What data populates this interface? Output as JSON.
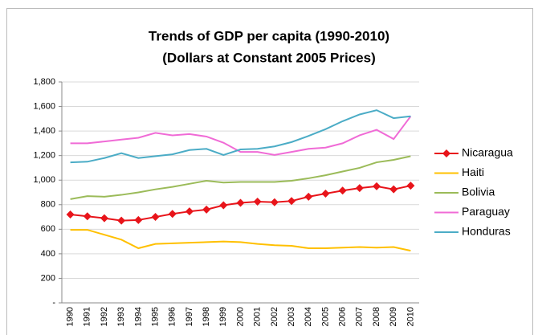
{
  "chart_data": {
    "type": "line",
    "title": "Trends of GDP per capita (1990-2010)",
    "subtitle": "(Dollars at Constant 2005 Prices)",
    "categories": [
      "1990",
      "1991",
      "1992",
      "1993",
      "1994",
      "1995",
      "1996",
      "1997",
      "1998",
      "1999",
      "2000",
      "2001",
      "2002",
      "2003",
      "2004",
      "2005",
      "2006",
      "2007",
      "2008",
      "2009",
      "2010"
    ],
    "series": [
      {
        "name": "Nicaragua",
        "color": "#e8141a",
        "marker": "diamond",
        "values": [
          720,
          705,
          690,
          670,
          675,
          700,
          725,
          745,
          760,
          795,
          815,
          825,
          820,
          830,
          865,
          890,
          915,
          935,
          950,
          925,
          955
        ]
      },
      {
        "name": "Haiti",
        "color": "#ffc000",
        "values": [
          595,
          595,
          555,
          515,
          445,
          480,
          485,
          490,
          495,
          500,
          495,
          480,
          470,
          465,
          445,
          445,
          450,
          455,
          450,
          455,
          425
        ]
      },
      {
        "name": "Bolivia",
        "color": "#9bbb59",
        "values": [
          845,
          870,
          865,
          880,
          900,
          925,
          945,
          970,
          995,
          980,
          985,
          985,
          985,
          995,
          1015,
          1040,
          1070,
          1100,
          1145,
          1165,
          1195
        ]
      },
      {
        "name": "Paraguay",
        "color": "#f06bd6",
        "values": [
          1300,
          1300,
          1315,
          1330,
          1345,
          1385,
          1365,
          1375,
          1355,
          1305,
          1230,
          1230,
          1205,
          1230,
          1255,
          1265,
          1300,
          1365,
          1410,
          1335,
          1520
        ]
      },
      {
        "name": "Honduras",
        "color": "#4bacc6",
        "values": [
          1145,
          1150,
          1180,
          1220,
          1180,
          1195,
          1210,
          1245,
          1255,
          1205,
          1250,
          1255,
          1275,
          1310,
          1360,
          1415,
          1480,
          1535,
          1570,
          1505,
          1520
        ]
      }
    ],
    "ylim": [
      0,
      1800
    ],
    "yticks": [
      {
        "value": 0,
        "label": "-"
      },
      200,
      400,
      600,
      800,
      {
        "value": 1000,
        "label": "1,000"
      },
      {
        "value": 1200,
        "label": "1,200"
      },
      {
        "value": 1400,
        "label": "1,400"
      },
      {
        "value": 1600,
        "label": "1,600"
      },
      {
        "value": 1800,
        "label": "1,800"
      }
    ],
    "grid": true,
    "legend": "right"
  }
}
